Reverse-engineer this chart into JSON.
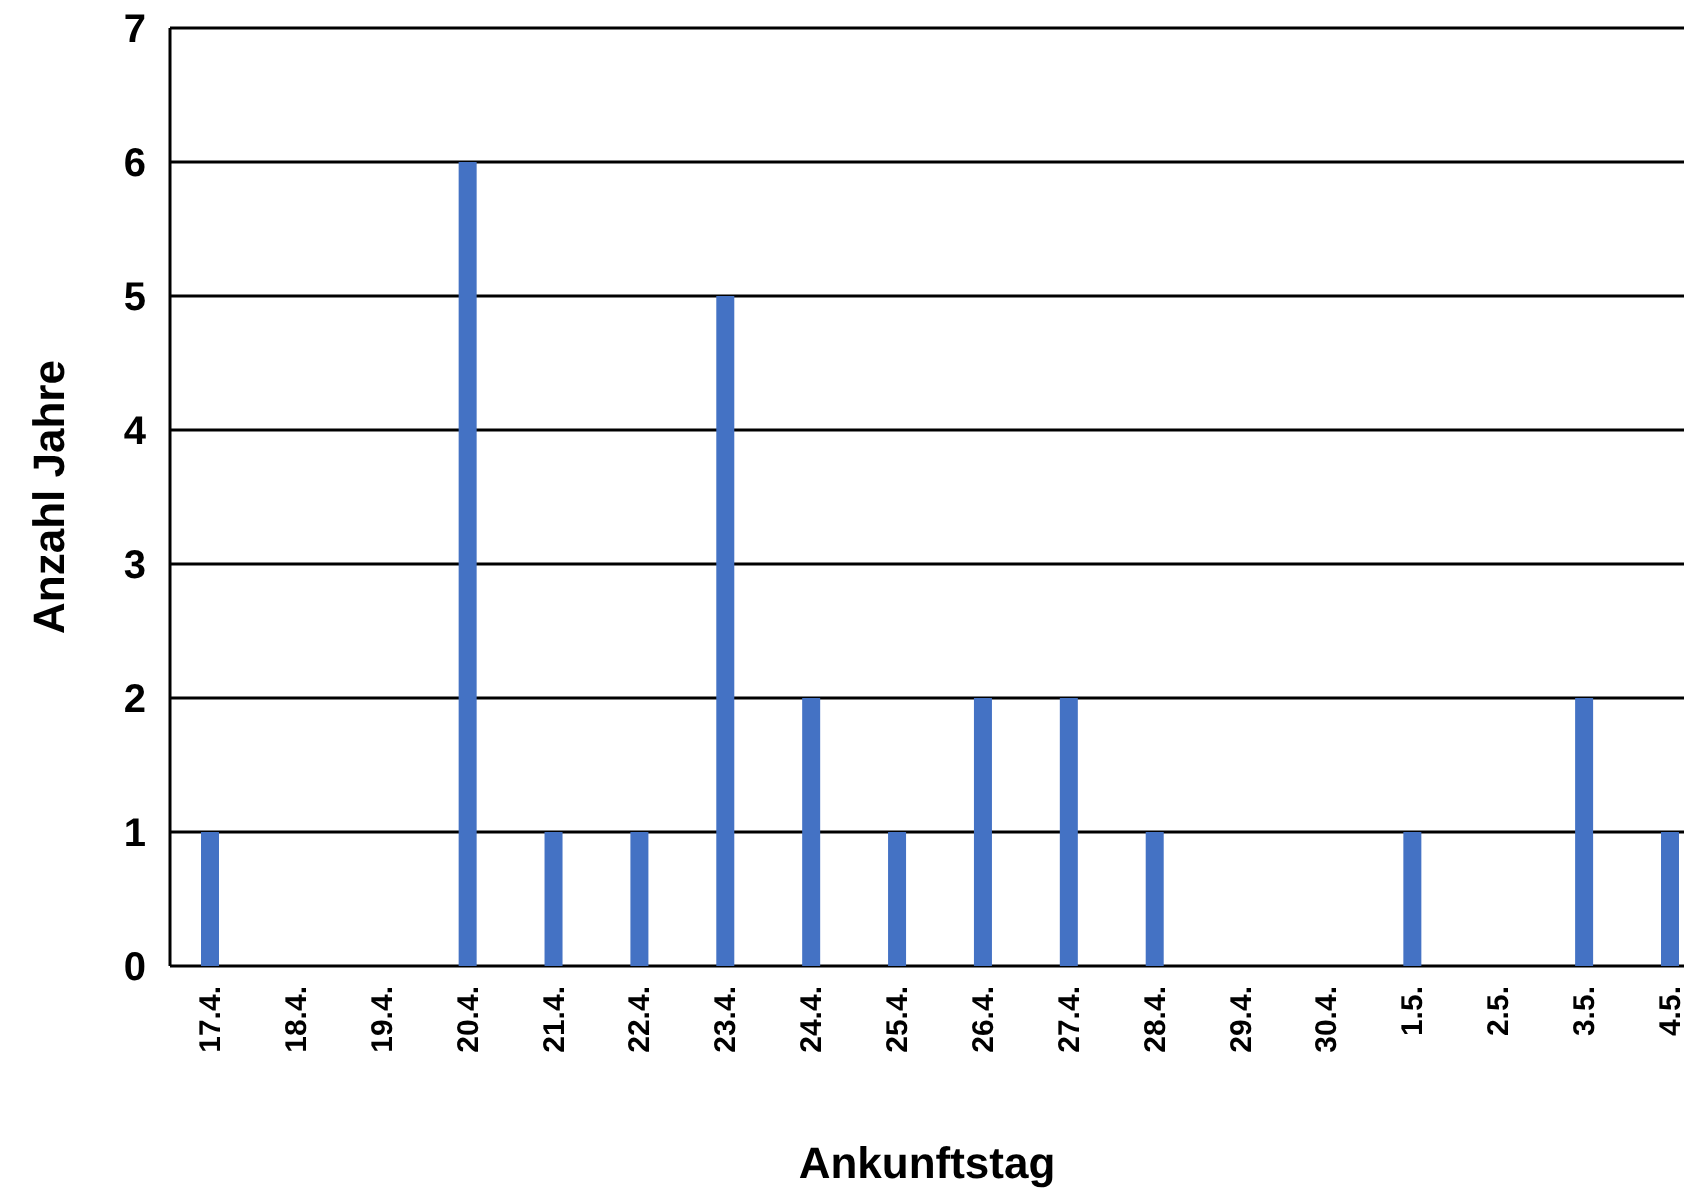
{
  "chart_data": {
    "type": "bar",
    "xlabel": "Ankunftstag",
    "ylabel": "Anzahl Jahre",
    "categories": [
      "17.4.",
      "18.4.",
      "19.4.",
      "20.4.",
      "21.4.",
      "22.4.",
      "23.4.",
      "24.4.",
      "25.4.",
      "26.4.",
      "27.4.",
      "28.4.",
      "29.4.",
      "30.4.",
      "1.5.",
      "2.5.",
      "3.5.",
      "4.5."
    ],
    "values": [
      1,
      0,
      0,
      6,
      1,
      1,
      5,
      2,
      1,
      2,
      2,
      1,
      0,
      0,
      1,
      0,
      2,
      1
    ],
    "color": "#4472c4",
    "ylim": [
      0,
      7
    ],
    "yticks": [
      0,
      1,
      2,
      3,
      4,
      5,
      6,
      7
    ],
    "grid": "y"
  }
}
